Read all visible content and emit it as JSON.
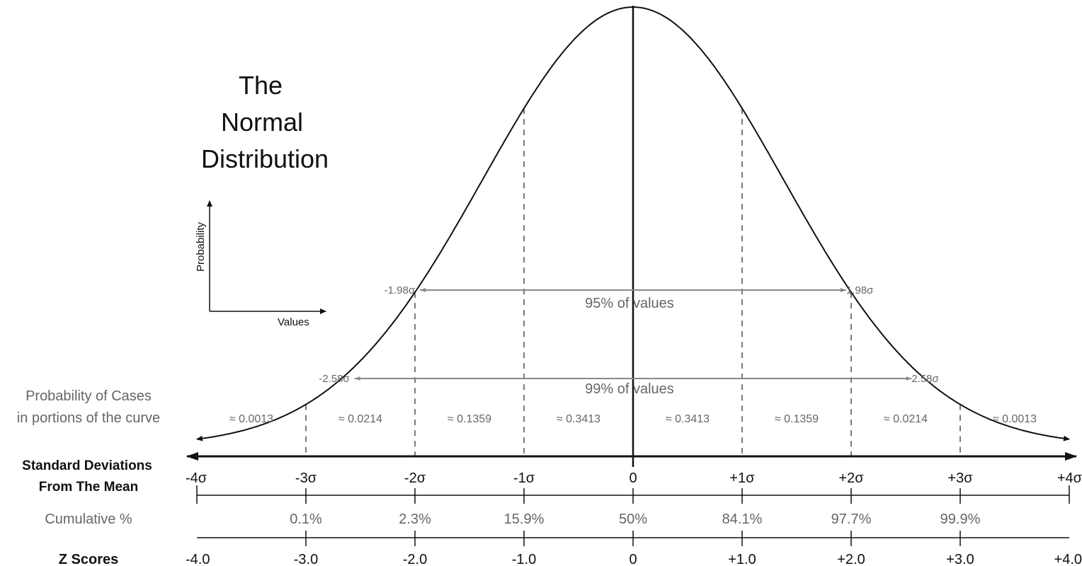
{
  "title_lines": [
    "The",
    "Normal",
    "Distribution"
  ],
  "inset_axes": {
    "y_label": "Probability",
    "x_label": "Values"
  },
  "intervals": [
    {
      "left_label": "-1.98σ",
      "right_label": "1.98σ",
      "label": "95% of values",
      "z": 1.98
    },
    {
      "left_label": "-2.58σ",
      "right_label": "2.58σ",
      "label": "99% of values",
      "z": 2.58
    }
  ],
  "row_labels": {
    "probability": [
      "Probability of Cases",
      "in portions of the curve"
    ],
    "std_dev": [
      "Standard Deviations",
      "From The Mean"
    ],
    "cumulative": "Cumulative %",
    "z_scores": "Z Scores"
  },
  "chart_data": {
    "type": "line",
    "description_curve": "normal probability density",
    "x": [
      -4,
      -3,
      -2,
      -1,
      0,
      1,
      2,
      3,
      4
    ],
    "portion_probabilities": [
      "≈ 0.0013",
      "≈ 0.0214",
      "≈ 0.1359",
      "≈ 0.3413",
      "≈ 0.3413",
      "≈ 0.1359",
      "≈ 0.0214",
      "≈ 0.0013"
    ],
    "std_dev_ticks": [
      "-4σ",
      "-3σ",
      "-2σ",
      "-1σ",
      "0",
      "+1σ",
      "+2σ",
      "+3σ",
      "+4σ"
    ],
    "cumulative_ticks": [
      "",
      "0.1%",
      "2.3%",
      "15.9%",
      "50%",
      "84.1%",
      "97.7%",
      "99.9%",
      ""
    ],
    "z_score_ticks": [
      "-4.0",
      "-3.0",
      "-2.0",
      "-1.0",
      "0",
      "+1.0",
      "+2.0",
      "+3.0",
      "+4.0"
    ],
    "xlim": [
      -4,
      4
    ]
  },
  "colors": {
    "line": "#111111",
    "annotation": "#666666",
    "interval_line": "#888888"
  }
}
